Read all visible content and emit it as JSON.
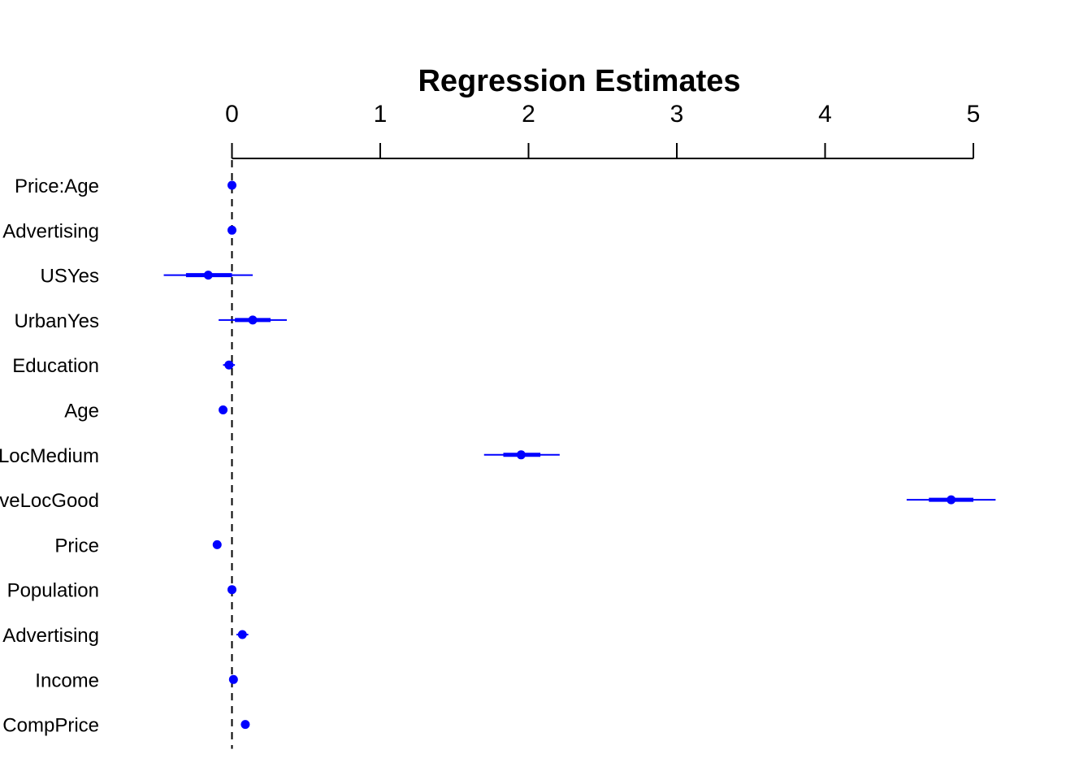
{
  "chart_data": {
    "type": "scatter",
    "title": "Regression Estimates",
    "xlabel": "",
    "ylabel": "",
    "xlim": [
      -0.6,
      5.3
    ],
    "x_ticks": [
      "0",
      "1",
      "2",
      "3",
      "4",
      "5"
    ],
    "x_axis_position": "top",
    "reference_line_x": 0,
    "grid": false,
    "legend": "none",
    "colors": {
      "points": "#0000ff",
      "axis": "#000000",
      "reference": "#000000"
    },
    "categories": [
      "Price:Age",
      "Advertising",
      "USYes",
      "UrbanYes",
      "Education",
      "Age",
      "LocMedium",
      "veLocGood",
      "Price",
      "Population",
      "Advertising",
      "Income",
      "CompPrice"
    ],
    "estimates": [
      {
        "label": "Price:Age",
        "estimate": 0.0,
        "inner": [
          0.0,
          0.0
        ],
        "outer": [
          0.0,
          0.0
        ]
      },
      {
        "label": "Advertising",
        "estimate": 0.0,
        "inner": [
          0.0,
          0.0
        ],
        "outer": [
          0.0,
          0.0
        ]
      },
      {
        "label": "USYes",
        "estimate": -0.16,
        "inner": [
          -0.31,
          0.0
        ],
        "outer": [
          -0.46,
          0.14
        ]
      },
      {
        "label": "UrbanYes",
        "estimate": 0.14,
        "inner": [
          0.02,
          0.26
        ],
        "outer": [
          -0.09,
          0.37
        ]
      },
      {
        "label": "Education",
        "estimate": -0.02,
        "inner": [
          -0.04,
          0.0
        ],
        "outer": [
          -0.06,
          0.02
        ]
      },
      {
        "label": "Age",
        "estimate": -0.06,
        "inner": [
          -0.07,
          -0.05
        ],
        "outer": [
          -0.08,
          -0.04
        ]
      },
      {
        "label": "LocMedium",
        "estimate": 1.95,
        "inner": [
          1.83,
          2.08
        ],
        "outer": [
          1.7,
          2.21
        ]
      },
      {
        "label": "veLocGood",
        "estimate": 4.85,
        "inner": [
          4.7,
          5.0
        ],
        "outer": [
          4.55,
          5.15
        ]
      },
      {
        "label": "Price",
        "estimate": -0.1,
        "inner": [
          -0.1,
          -0.1
        ],
        "outer": [
          -0.11,
          -0.09
        ]
      },
      {
        "label": "Population",
        "estimate": 0.0,
        "inner": [
          0.0,
          0.0
        ],
        "outer": [
          0.0,
          0.0
        ]
      },
      {
        "label": "Advertising",
        "estimate": 0.07,
        "inner": [
          0.05,
          0.09
        ],
        "outer": [
          0.03,
          0.11
        ]
      },
      {
        "label": "Income",
        "estimate": 0.01,
        "inner": [
          0.01,
          0.01
        ],
        "outer": [
          0.0,
          0.02
        ]
      },
      {
        "label": "CompPrice",
        "estimate": 0.09,
        "inner": [
          0.09,
          0.09
        ],
        "outer": [
          0.08,
          0.1
        ]
      }
    ]
  }
}
